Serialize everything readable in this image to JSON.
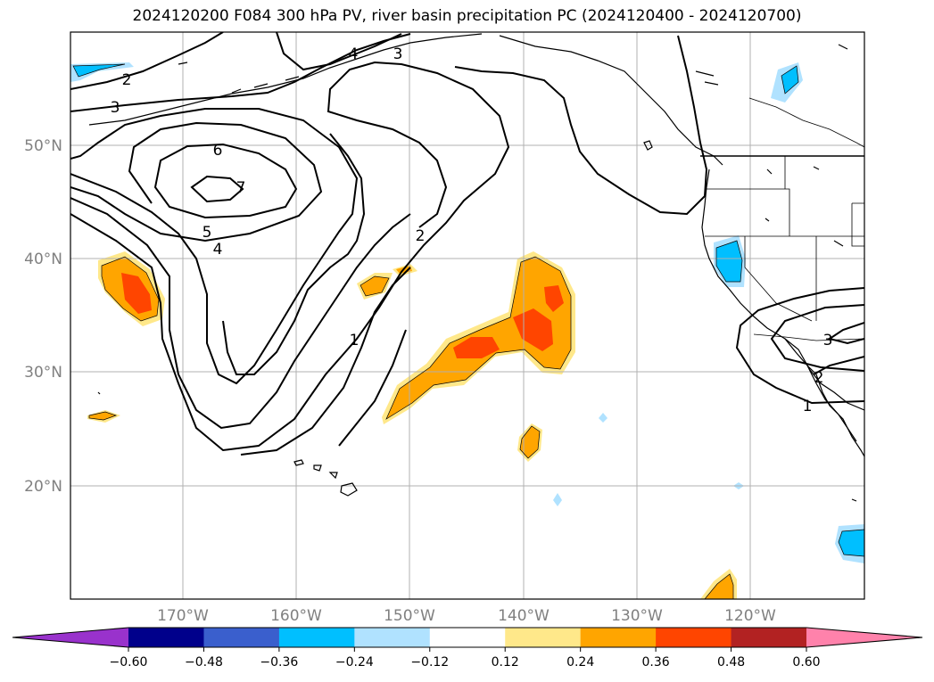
{
  "title": "2024120200 F084 300 hPa PV, river basin precipitation PC (2024120400 - 2024120700)",
  "lat_labels": [
    "50°N",
    "40°N",
    "30°N",
    "20°N"
  ],
  "lon_labels": [
    "170°W",
    "160°W",
    "150°W",
    "140°W",
    "130°W",
    "120°W"
  ],
  "colorbar": {
    "tick_labels": [
      "−0.60",
      "−0.48",
      "−0.36",
      "−0.24",
      "−0.12",
      "0.12",
      "0.24",
      "0.36",
      "0.48",
      "0.60"
    ],
    "colors": [
      "#9932cc",
      "#00008b",
      "#3a5fcd",
      "#00bfff",
      "#b0e2ff",
      "#ffffff",
      "#ffe88a",
      "#ffa500",
      "#ff4500",
      "#b22222",
      "#ff82ab"
    ],
    "extend": "both"
  },
  "contour_labels": [
    "2",
    "3",
    "4",
    "3",
    "6",
    "7",
    "5",
    "4",
    "2",
    "1",
    "3",
    "2",
    "1"
  ],
  "projection": "PlateCarree",
  "extent": {
    "lon_min": -180,
    "lon_max": -110,
    "lat_min": 10,
    "lat_max": 60
  }
}
